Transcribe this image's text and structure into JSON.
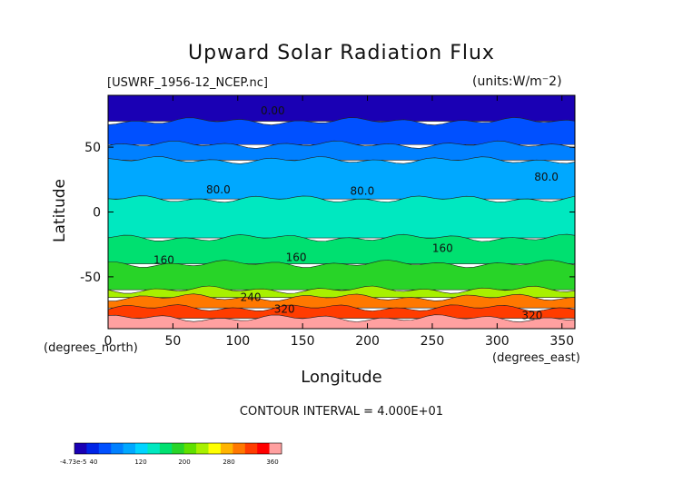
{
  "chart_data": {
    "type": "heatmap",
    "title": "Upward Solar Radiation Flux",
    "file_label": "[USWRF_1956-12_NCEP.nc]",
    "units_label": "(units:W/m^2)",
    "xlabel": "Longitude",
    "ylabel": "Latitude",
    "x_units_label": "(degrees_east)",
    "y_units_label": "(degrees_north)",
    "xlim": [
      0,
      360
    ],
    "ylim": [
      -90,
      90
    ],
    "x_ticks": [
      0,
      50,
      100,
      150,
      200,
      250,
      300,
      350
    ],
    "y_ticks": [
      50,
      0,
      -50
    ],
    "contour_interval_label": "CONTOUR INTERVAL = 4.000E+01",
    "contour_labels": [
      {
        "text": "0.00",
        "lon": 127,
        "lat": 78
      },
      {
        "text": "80.0",
        "lon": 85,
        "lat": 17
      },
      {
        "text": "80.0",
        "lon": 196,
        "lat": 16
      },
      {
        "text": "80.0",
        "lon": 338,
        "lat": 27
      },
      {
        "text": "160",
        "lon": 43,
        "lat": -37
      },
      {
        "text": "160",
        "lon": 145,
        "lat": -35
      },
      {
        "text": "160",
        "lon": 258,
        "lat": -28
      },
      {
        "text": "240",
        "lon": 110,
        "lat": -66
      },
      {
        "text": "320",
        "lon": 136,
        "lat": -75
      },
      {
        "text": "320",
        "lon": 327,
        "lat": -80
      }
    ],
    "lat_bands": [
      {
        "lat_max": 90,
        "lat_min": 70,
        "value": 0
      },
      {
        "lat_max": 70,
        "lat_min": 52,
        "value": 40
      },
      {
        "lat_max": 52,
        "lat_min": 40,
        "value": 60
      },
      {
        "lat_max": 40,
        "lat_min": 10,
        "value": 90
      },
      {
        "lat_max": 10,
        "lat_min": -20,
        "value": 130
      },
      {
        "lat_max": -20,
        "lat_min": -40,
        "value": 160
      },
      {
        "lat_max": -40,
        "lat_min": -60,
        "value": 190
      },
      {
        "lat_max": -60,
        "lat_min": -66,
        "value": 230
      },
      {
        "lat_max": -66,
        "lat_min": -74,
        "value": 300
      },
      {
        "lat_max": -74,
        "lat_min": -82,
        "value": 330
      },
      {
        "lat_max": -82,
        "lat_min": -90,
        "value": 370
      }
    ],
    "colorbar": {
      "min_label": "-4.73e-5",
      "labels": [
        "40",
        "120",
        "200",
        "280",
        "360"
      ],
      "colors": [
        "#1a00b4",
        "#0024e6",
        "#0050ff",
        "#0080ff",
        "#00a8ff",
        "#00d4ff",
        "#00e8c0",
        "#00e070",
        "#28d428",
        "#60e000",
        "#a8f000",
        "#ffff00",
        "#ffb400",
        "#ff7800",
        "#ff3c00",
        "#ff0000",
        "#ffa0a0"
      ]
    }
  }
}
